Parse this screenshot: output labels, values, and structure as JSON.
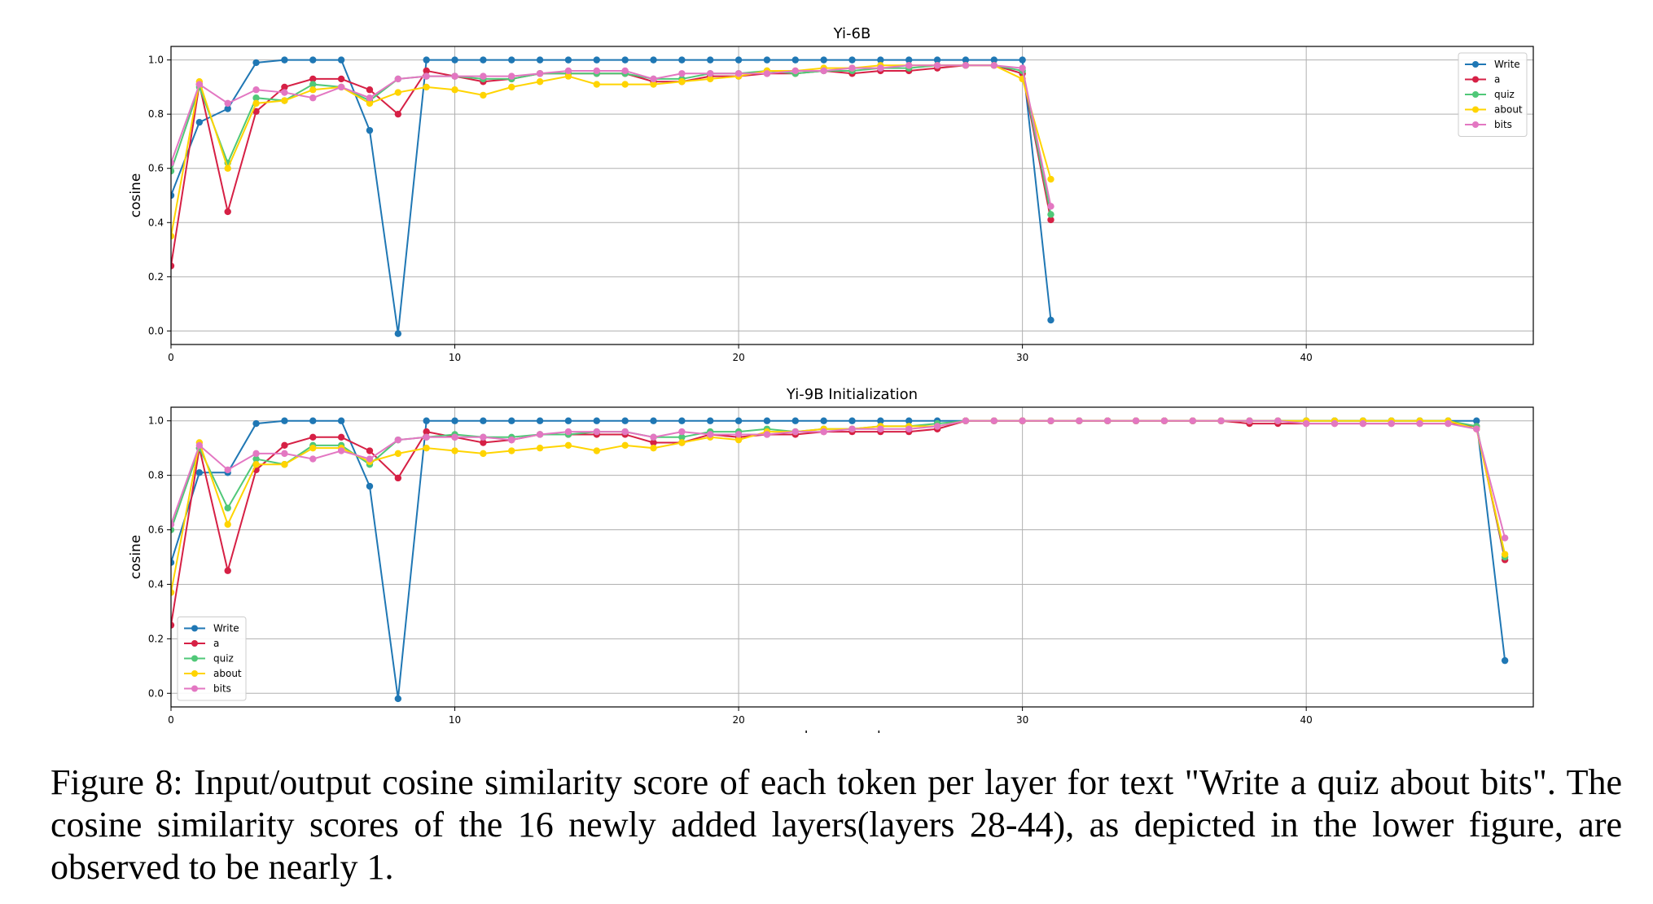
{
  "chart_data": [
    {
      "type": "line",
      "title": "Yi-6B",
      "xlabel": "",
      "ylabel": "cosine",
      "xlim": [
        0,
        48
      ],
      "ylim": [
        -0.05,
        1.05
      ],
      "xticks": [
        0,
        10,
        20,
        30,
        40
      ],
      "yticks": [
        0.0,
        0.2,
        0.4,
        0.6,
        0.8,
        1.0
      ],
      "grid": true,
      "legend": "top-right",
      "x": [
        0,
        1,
        2,
        3,
        4,
        5,
        6,
        7,
        8,
        9,
        10,
        11,
        12,
        13,
        14,
        15,
        16,
        17,
        18,
        19,
        20,
        21,
        22,
        23,
        24,
        25,
        26,
        27,
        28,
        29,
        30,
        31
      ],
      "series": [
        {
          "name": "Write",
          "color": "#1f77b4",
          "values": [
            0.5,
            0.77,
            0.82,
            0.99,
            1.0,
            1.0,
            1.0,
            0.74,
            -0.01,
            1.0,
            1.0,
            1.0,
            1.0,
            1.0,
            1.0,
            1.0,
            1.0,
            1.0,
            1.0,
            1.0,
            1.0,
            1.0,
            1.0,
            1.0,
            1.0,
            1.0,
            1.0,
            1.0,
            1.0,
            1.0,
            1.0,
            0.04
          ]
        },
        {
          "name": "a",
          "color": "#d62045",
          "values": [
            0.24,
            0.91,
            0.44,
            0.81,
            0.9,
            0.93,
            0.93,
            0.89,
            0.8,
            0.96,
            0.94,
            0.92,
            0.93,
            0.95,
            0.95,
            0.95,
            0.95,
            0.92,
            0.92,
            0.94,
            0.94,
            0.95,
            0.95,
            0.96,
            0.95,
            0.96,
            0.96,
            0.97,
            0.98,
            0.98,
            0.95,
            0.41
          ]
        },
        {
          "name": "quiz",
          "color": "#50c878",
          "values": [
            0.59,
            0.9,
            0.62,
            0.86,
            0.85,
            0.91,
            0.9,
            0.85,
            0.93,
            0.94,
            0.94,
            0.93,
            0.93,
            0.95,
            0.95,
            0.95,
            0.95,
            0.93,
            0.93,
            0.95,
            0.95,
            0.96,
            0.95,
            0.96,
            0.96,
            0.97,
            0.97,
            0.98,
            0.98,
            0.98,
            0.96,
            0.43
          ]
        },
        {
          "name": "about",
          "color": "#ffd400",
          "values": [
            0.35,
            0.92,
            0.6,
            0.84,
            0.85,
            0.89,
            0.9,
            0.84,
            0.88,
            0.9,
            0.89,
            0.87,
            0.9,
            0.92,
            0.94,
            0.91,
            0.91,
            0.91,
            0.92,
            0.93,
            0.94,
            0.96,
            0.96,
            0.97,
            0.97,
            0.98,
            0.98,
            0.98,
            0.98,
            0.98,
            0.93,
            0.56
          ]
        },
        {
          "name": "bits",
          "color": "#e377c2",
          "values": [
            0.62,
            0.91,
            0.84,
            0.89,
            0.88,
            0.86,
            0.9,
            0.86,
            0.93,
            0.94,
            0.94,
            0.94,
            0.94,
            0.95,
            0.96,
            0.96,
            0.96,
            0.93,
            0.95,
            0.95,
            0.95,
            0.95,
            0.96,
            0.96,
            0.97,
            0.97,
            0.98,
            0.98,
            0.98,
            0.98,
            0.97,
            0.46
          ]
        }
      ]
    },
    {
      "type": "line",
      "title": "Yi-9B Initialization",
      "xlabel": "layer_number",
      "ylabel": "cosine",
      "xlim": [
        0,
        48
      ],
      "ylim": [
        -0.05,
        1.05
      ],
      "xticks": [
        0,
        10,
        20,
        30,
        40
      ],
      "yticks": [
        0.0,
        0.2,
        0.4,
        0.6,
        0.8,
        1.0
      ],
      "grid": true,
      "legend": "bottom-left",
      "x": [
        0,
        1,
        2,
        3,
        4,
        5,
        6,
        7,
        8,
        9,
        10,
        11,
        12,
        13,
        14,
        15,
        16,
        17,
        18,
        19,
        20,
        21,
        22,
        23,
        24,
        25,
        26,
        27,
        28,
        29,
        30,
        31,
        32,
        33,
        34,
        35,
        36,
        37,
        38,
        39,
        40,
        41,
        42,
        43,
        44,
        45,
        46,
        47
      ],
      "series": [
        {
          "name": "Write",
          "color": "#1f77b4",
          "values": [
            0.48,
            0.81,
            0.81,
            0.99,
            1.0,
            1.0,
            1.0,
            0.76,
            -0.02,
            1.0,
            1.0,
            1.0,
            1.0,
            1.0,
            1.0,
            1.0,
            1.0,
            1.0,
            1.0,
            1.0,
            1.0,
            1.0,
            1.0,
            1.0,
            1.0,
            1.0,
            1.0,
            1.0,
            1.0,
            1.0,
            1.0,
            1.0,
            1.0,
            1.0,
            1.0,
            1.0,
            1.0,
            1.0,
            1.0,
            1.0,
            1.0,
            1.0,
            1.0,
            1.0,
            1.0,
            1.0,
            1.0,
            0.12
          ]
        },
        {
          "name": "a",
          "color": "#d62045",
          "values": [
            0.25,
            0.9,
            0.45,
            0.82,
            0.91,
            0.94,
            0.94,
            0.89,
            0.79,
            0.96,
            0.94,
            0.92,
            0.93,
            0.95,
            0.95,
            0.95,
            0.95,
            0.92,
            0.92,
            0.95,
            0.94,
            0.95,
            0.95,
            0.96,
            0.96,
            0.96,
            0.96,
            0.97,
            1.0,
            1.0,
            1.0,
            1.0,
            1.0,
            1.0,
            1.0,
            1.0,
            1.0,
            1.0,
            0.99,
            0.99,
            0.99,
            0.99,
            0.99,
            0.99,
            0.99,
            0.99,
            0.98,
            0.49
          ]
        },
        {
          "name": "quiz",
          "color": "#50c878",
          "values": [
            0.6,
            0.9,
            0.68,
            0.86,
            0.84,
            0.91,
            0.91,
            0.84,
            0.93,
            0.94,
            0.95,
            0.94,
            0.94,
            0.95,
            0.95,
            0.96,
            0.96,
            0.94,
            0.94,
            0.96,
            0.96,
            0.97,
            0.96,
            0.97,
            0.97,
            0.98,
            0.98,
            0.99,
            1.0,
            1.0,
            1.0,
            1.0,
            1.0,
            1.0,
            1.0,
            1.0,
            1.0,
            1.0,
            1.0,
            1.0,
            1.0,
            1.0,
            1.0,
            1.0,
            1.0,
            1.0,
            0.98,
            0.5
          ]
        },
        {
          "name": "about",
          "color": "#ffd400",
          "values": [
            0.37,
            0.92,
            0.62,
            0.84,
            0.84,
            0.9,
            0.9,
            0.85,
            0.88,
            0.9,
            0.89,
            0.88,
            0.89,
            0.9,
            0.91,
            0.89,
            0.91,
            0.9,
            0.92,
            0.94,
            0.93,
            0.96,
            0.96,
            0.97,
            0.97,
            0.98,
            0.98,
            0.98,
            1.0,
            1.0,
            1.0,
            1.0,
            1.0,
            1.0,
            1.0,
            1.0,
            1.0,
            1.0,
            1.0,
            1.0,
            1.0,
            1.0,
            1.0,
            1.0,
            1.0,
            1.0,
            0.97,
            0.51
          ]
        },
        {
          "name": "bits",
          "color": "#e377c2",
          "values": [
            0.62,
            0.91,
            0.82,
            0.88,
            0.88,
            0.86,
            0.89,
            0.86,
            0.93,
            0.94,
            0.94,
            0.94,
            0.93,
            0.95,
            0.96,
            0.96,
            0.96,
            0.94,
            0.96,
            0.95,
            0.95,
            0.95,
            0.96,
            0.96,
            0.97,
            0.97,
            0.97,
            0.98,
            1.0,
            1.0,
            1.0,
            1.0,
            1.0,
            1.0,
            1.0,
            1.0,
            1.0,
            1.0,
            1.0,
            1.0,
            0.99,
            0.99,
            0.99,
            0.99,
            0.99,
            0.99,
            0.97,
            0.57
          ]
        }
      ]
    }
  ],
  "caption": "Figure 8: Input/output cosine similarity score of each token per layer for text \"Write a quiz about bits\". The cosine similarity scores of the 16 newly added layers(layers 28-44), as depicted in the lower figure, are observed to be nearly 1."
}
